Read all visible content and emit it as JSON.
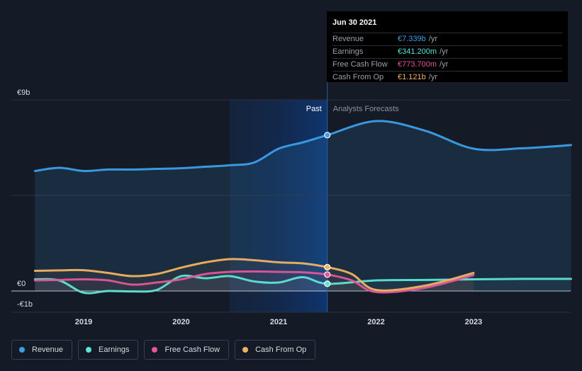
{
  "tooltip": {
    "date": "Jun 30 2021",
    "rows": [
      {
        "label": "Revenue",
        "value": "€7.339b",
        "unit": "/yr",
        "color": "#3b9fe8"
      },
      {
        "label": "Earnings",
        "value": "€341.200m",
        "unit": "/yr",
        "color": "#5ee4d4"
      },
      {
        "label": "Free Cash Flow",
        "value": "€773.700m",
        "unit": "/yr",
        "color": "#e0569a"
      },
      {
        "label": "Cash From Op",
        "value": "€1.121b",
        "unit": "/yr",
        "color": "#f0b262"
      }
    ]
  },
  "legend": [
    {
      "label": "Revenue",
      "color": "#3b9fe8"
    },
    {
      "label": "Earnings",
      "color": "#5ee4d4"
    },
    {
      "label": "Free Cash Flow",
      "color": "#e0569a"
    },
    {
      "label": "Cash From Op",
      "color": "#f0b262"
    }
  ],
  "chart_data": {
    "type": "line",
    "y_tick_labels": [
      "€9b",
      "€0",
      "-€1b"
    ],
    "ylim": [
      -1,
      9
    ],
    "x_ticks": [
      2019,
      2020,
      2021,
      2022,
      2023
    ],
    "x_tick_labels": [
      "2019",
      "2020",
      "2021",
      "2022",
      "2023"
    ],
    "xlim": [
      2018.25,
      2024
    ],
    "past_label": "Past",
    "forecast_label": "Analysts Forecasts",
    "past_region_start": 2020.5,
    "divider_x": 2021.5,
    "highlight_x": 2021.5,
    "series": [
      {
        "name": "Revenue",
        "color": "#3b9fe8",
        "fill": true,
        "points": [
          [
            2018.5,
            5.65
          ],
          [
            2018.75,
            5.8
          ],
          [
            2019,
            5.65
          ],
          [
            2019.25,
            5.72
          ],
          [
            2019.5,
            5.72
          ],
          [
            2019.75,
            5.75
          ],
          [
            2020,
            5.78
          ],
          [
            2020.25,
            5.85
          ],
          [
            2020.5,
            5.92
          ],
          [
            2020.75,
            6.05
          ],
          [
            2021,
            6.7
          ],
          [
            2021.25,
            7.0
          ],
          [
            2021.5,
            7.339
          ],
          [
            2022,
            8.0
          ],
          [
            2022.5,
            7.55
          ],
          [
            2023,
            6.7
          ],
          [
            2023.5,
            6.72
          ],
          [
            2024,
            6.87
          ]
        ]
      },
      {
        "name": "Earnings",
        "color": "#5ee4d4",
        "fill": false,
        "points": [
          [
            2018.5,
            0.55
          ],
          [
            2018.75,
            0.5
          ],
          [
            2019,
            -0.08
          ],
          [
            2019.25,
            0.0
          ],
          [
            2019.5,
            -0.02
          ],
          [
            2019.75,
            0.05
          ],
          [
            2020,
            0.7
          ],
          [
            2020.25,
            0.6
          ],
          [
            2020.5,
            0.7
          ],
          [
            2020.75,
            0.45
          ],
          [
            2021,
            0.4
          ],
          [
            2021.25,
            0.65
          ],
          [
            2021.5,
            0.3412
          ],
          [
            2022,
            0.5
          ],
          [
            2022.5,
            0.52
          ],
          [
            2023,
            0.55
          ],
          [
            2023.5,
            0.57
          ],
          [
            2024,
            0.57
          ]
        ]
      },
      {
        "name": "Free Cash Flow",
        "color": "#e0569a",
        "fill": false,
        "points": [
          [
            2018.5,
            0.5
          ],
          [
            2018.75,
            0.52
          ],
          [
            2019,
            0.55
          ],
          [
            2019.25,
            0.5
          ],
          [
            2019.5,
            0.3
          ],
          [
            2019.75,
            0.4
          ],
          [
            2020,
            0.55
          ],
          [
            2020.25,
            0.8
          ],
          [
            2020.5,
            0.9
          ],
          [
            2020.75,
            0.92
          ],
          [
            2021,
            0.9
          ],
          [
            2021.25,
            0.88
          ],
          [
            2021.5,
            0.7737
          ],
          [
            2021.75,
            0.5
          ],
          [
            2022,
            -0.05
          ],
          [
            2022.5,
            0.15
          ],
          [
            2023,
            0.75
          ]
        ]
      },
      {
        "name": "Cash From Op",
        "color": "#f0b262",
        "fill": false,
        "points": [
          [
            2018.5,
            0.95
          ],
          [
            2018.75,
            0.97
          ],
          [
            2019,
            0.98
          ],
          [
            2019.25,
            0.85
          ],
          [
            2019.5,
            0.7
          ],
          [
            2019.75,
            0.8
          ],
          [
            2020,
            1.1
          ],
          [
            2020.25,
            1.35
          ],
          [
            2020.5,
            1.5
          ],
          [
            2020.75,
            1.45
          ],
          [
            2021,
            1.35
          ],
          [
            2021.25,
            1.3
          ],
          [
            2021.5,
            1.121
          ],
          [
            2021.75,
            0.8
          ],
          [
            2022,
            0.05
          ],
          [
            2022.5,
            0.25
          ],
          [
            2023,
            0.85
          ]
        ]
      }
    ]
  }
}
